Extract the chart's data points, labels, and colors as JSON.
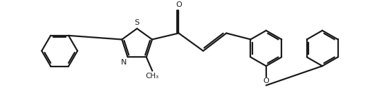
{
  "background": "#ffffff",
  "line_color": "#1a1a1a",
  "line_width": 1.6,
  "fig_width": 5.38,
  "fig_height": 1.4,
  "dpi": 100,
  "xlim": [
    0,
    10.76
  ],
  "ylim": [
    0,
    2.8
  ]
}
